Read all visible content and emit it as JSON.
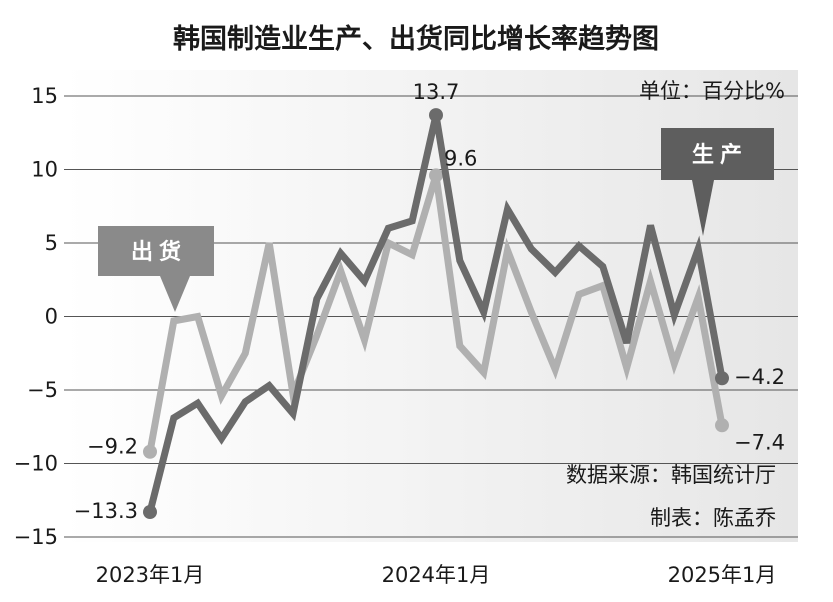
{
  "chart_data": {
    "type": "line",
    "title": "韩国制造业生产、出货同比增长率趋势图",
    "unit": "单位：百分比%",
    "source": "数据来源：韩国统计厅",
    "author": "制表：陈孟乔",
    "xlabel": "",
    "ylabel": "",
    "ylim": [
      -15,
      15
    ],
    "yticks": [
      "15",
      "10",
      "5",
      "0",
      "-5",
      "-10",
      "-15"
    ],
    "grid": true,
    "x_tick_labels": [
      {
        "index": 0,
        "label": "2023年1月"
      },
      {
        "index": 12,
        "label": "2024年1月"
      },
      {
        "index": 24,
        "label": "2025年1月"
      }
    ],
    "x": [
      "2023-01",
      "2023-02",
      "2023-03",
      "2023-04",
      "2023-05",
      "2023-06",
      "2023-07",
      "2023-08",
      "2023-09",
      "2023-10",
      "2023-11",
      "2023-12",
      "2024-01",
      "2024-02",
      "2024-03",
      "2024-04",
      "2024-05",
      "2024-06",
      "2024-07",
      "2024-08",
      "2024-09",
      "2024-10",
      "2024-11",
      "2024-12",
      "2025-01"
    ],
    "series": [
      {
        "name": "生产",
        "color": "#6b6b6b",
        "values": [
          -13.3,
          -6.9,
          -5.9,
          -8.3,
          -5.8,
          -4.7,
          -6.6,
          1.2,
          4.3,
          2.4,
          6.0,
          6.5,
          13.7,
          3.8,
          0.3,
          7.3,
          4.6,
          3.0,
          4.8,
          3.4,
          -1.8,
          6.2,
          0.1,
          4.6,
          -4.2
        ],
        "labels": [
          {
            "index": 0,
            "text": "-13.3"
          },
          {
            "index": 12,
            "text": "13.7"
          },
          {
            "index": 24,
            "text": "-4.2"
          }
        ]
      },
      {
        "name": "出货",
        "color": "#b0b0b0",
        "values": [
          -9.2,
          -0.3,
          0.0,
          -5.4,
          -2.5,
          5.0,
          -5.3,
          -1.3,
          3.1,
          -1.6,
          5.0,
          4.2,
          9.6,
          -2.0,
          -3.8,
          4.5,
          0.3,
          -3.6,
          1.5,
          2.1,
          -3.5,
          2.4,
          -3.2,
          1.3,
          -7.4
        ],
        "labels": [
          {
            "index": 0,
            "text": "-9.2"
          },
          {
            "index": 12,
            "text": "9.6"
          },
          {
            "index": 24,
            "text": "-7.4"
          }
        ]
      }
    ]
  }
}
